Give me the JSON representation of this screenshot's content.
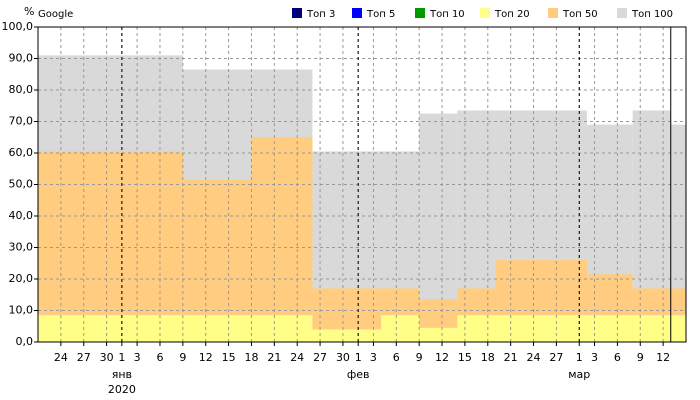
{
  "chart_data": {
    "type": "step-area",
    "title": "Google",
    "y_label": "%",
    "xlim": [
      "12-21",
      "03-15"
    ],
    "ylim": [
      0,
      100
    ],
    "yticks": [
      {
        "value": 0,
        "label": "0,0"
      },
      {
        "value": 10,
        "label": "10,0"
      },
      {
        "value": 20,
        "label": "20,0"
      },
      {
        "value": 30,
        "label": "30,0"
      },
      {
        "value": 40,
        "label": "40,0"
      },
      {
        "value": 50,
        "label": "50,0"
      },
      {
        "value": 60,
        "label": "60,0"
      },
      {
        "value": 70,
        "label": "70,0"
      },
      {
        "value": 80,
        "label": "80,0"
      },
      {
        "value": 90,
        "label": "90,0"
      },
      {
        "value": 100,
        "label": "100,0"
      }
    ],
    "xticks": [
      {
        "value": "12-24",
        "label": "24"
      },
      {
        "value": "12-27",
        "label": "27"
      },
      {
        "value": "12-30",
        "label": "30"
      },
      {
        "value": "01-01",
        "label": "1"
      },
      {
        "value": "01-03",
        "label": "3"
      },
      {
        "value": "01-06",
        "label": "6"
      },
      {
        "value": "01-09",
        "label": "9"
      },
      {
        "value": "01-12",
        "label": "12"
      },
      {
        "value": "01-15",
        "label": "15"
      },
      {
        "value": "01-18",
        "label": "18"
      },
      {
        "value": "01-21",
        "label": "21"
      },
      {
        "value": "01-24",
        "label": "24"
      },
      {
        "value": "01-27",
        "label": "27"
      },
      {
        "value": "01-30",
        "label": "30"
      },
      {
        "value": "02-01",
        "label": "1"
      },
      {
        "value": "02-03",
        "label": "3"
      },
      {
        "value": "02-06",
        "label": "6"
      },
      {
        "value": "02-09",
        "label": "9"
      },
      {
        "value": "02-12",
        "label": "12"
      },
      {
        "value": "02-15",
        "label": "15"
      },
      {
        "value": "02-18",
        "label": "18"
      },
      {
        "value": "02-21",
        "label": "21"
      },
      {
        "value": "02-24",
        "label": "24"
      },
      {
        "value": "02-27",
        "label": "27"
      },
      {
        "value": "03-01",
        "label": "1"
      },
      {
        "value": "03-03",
        "label": "3"
      },
      {
        "value": "03-06",
        "label": "6"
      },
      {
        "value": "03-09",
        "label": "9"
      },
      {
        "value": "03-12",
        "label": "12"
      }
    ],
    "months": [
      {
        "value": "01-01",
        "label": "янв"
      },
      {
        "value": "02-01",
        "label": "фев"
      },
      {
        "value": "03-01",
        "label": "мар"
      }
    ],
    "year": {
      "value": "01-01",
      "label": "2020"
    },
    "grid": true,
    "legend": "top-right",
    "x": [
      "12-21",
      "01-09",
      "01-18",
      "01-26",
      "02-04",
      "02-09",
      "02-14",
      "02-19",
      "03-02",
      "03-08",
      "03-13"
    ],
    "series": [
      {
        "name": "Топ 3",
        "color": "#000080",
        "values": [
          0,
          0,
          0,
          0,
          0,
          0,
          0,
          0,
          0,
          0,
          0
        ]
      },
      {
        "name": "Топ 5",
        "color": "#0000ff",
        "values": [
          0,
          0,
          0,
          0,
          0,
          0,
          0,
          0,
          0,
          0,
          0
        ]
      },
      {
        "name": "Топ 10",
        "color": "#009900",
        "values": [
          0,
          0,
          0,
          0,
          0,
          0,
          0,
          0,
          0,
          0,
          0
        ]
      },
      {
        "name": "Топ 20",
        "color": "#ffff88",
        "values": [
          8.5,
          8.5,
          8.5,
          4,
          8.5,
          4.5,
          8.5,
          8.5,
          8.5,
          8.5,
          8.5
        ]
      },
      {
        "name": "Топ 50",
        "color": "#ffcc80",
        "values": [
          60.5,
          51.5,
          65,
          17,
          17,
          13.5,
          17,
          26,
          21.5,
          17,
          17
        ]
      },
      {
        "name": "Топ 100",
        "color": "#d9d9d9",
        "values": [
          91,
          86.5,
          86.5,
          60.5,
          60.5,
          72.5,
          73.5,
          73.5,
          69,
          73.5,
          69
        ]
      }
    ]
  }
}
